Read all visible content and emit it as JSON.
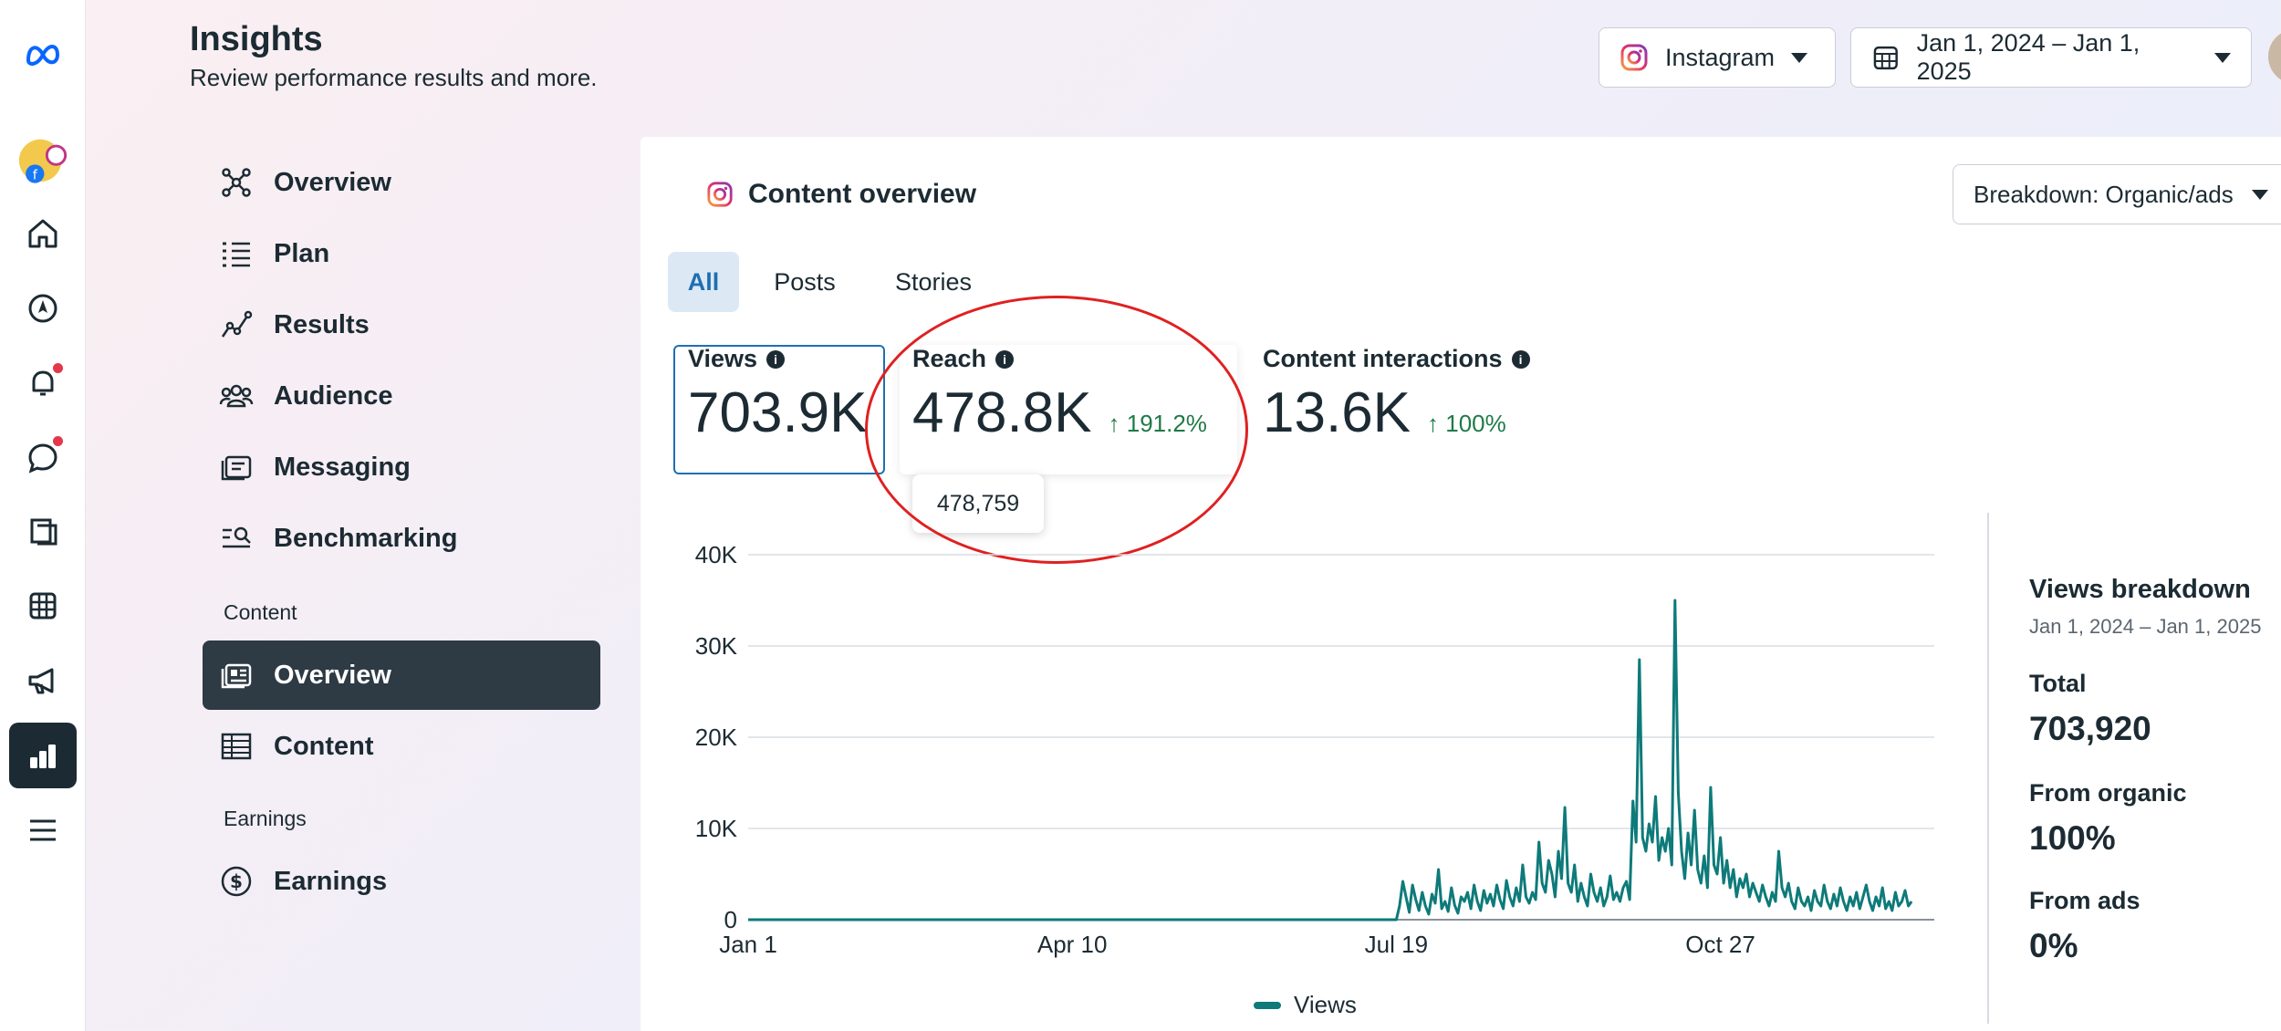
{
  "header": {
    "title": "Insights",
    "subtitle": "Review performance results and more.",
    "platform": "Instagram",
    "date_range": "Jan 1, 2024 – Jan 1, 2025"
  },
  "rail": {
    "icons": [
      "meta-logo-icon",
      "account-avatar-icon",
      "home-icon",
      "compass-icon",
      "bell-icon",
      "chat-icon",
      "posts-icon",
      "table-icon",
      "megaphone-icon",
      "insights-icon",
      "menu-icon"
    ],
    "accent": "#1c2b33",
    "notification_color": "#e4384a"
  },
  "nav": {
    "items": [
      {
        "label": "Overview"
      },
      {
        "label": "Plan"
      },
      {
        "label": "Results"
      },
      {
        "label": "Audience"
      },
      {
        "label": "Messaging"
      },
      {
        "label": "Benchmarking"
      }
    ],
    "content_section": "Content",
    "content_items": [
      {
        "label": "Overview"
      },
      {
        "label": "Content"
      }
    ],
    "earnings_section": "Earnings",
    "earnings_items": [
      {
        "label": "Earnings"
      }
    ]
  },
  "card": {
    "title": "Content overview",
    "breakdown_label": "Breakdown: Organic/ads",
    "tabs": [
      {
        "label": "All"
      },
      {
        "label": "Posts"
      },
      {
        "label": "Stories"
      }
    ],
    "metrics": {
      "views": {
        "label": "Views",
        "value": "703.9K"
      },
      "reach": {
        "label": "Reach",
        "value": "478.8K",
        "delta": "↑ 191.2%",
        "tooltip": "478,759"
      },
      "interactions": {
        "label": "Content interactions",
        "value": "13.6K",
        "delta": "↑ 100%"
      }
    }
  },
  "breakdown": {
    "title": "Views breakdown",
    "range": "Jan 1, 2024 – Jan 1, 2025",
    "total_label": "Total",
    "total_value": "703,920",
    "organic_label": "From organic",
    "organic_value": "100%",
    "ads_label": "From ads",
    "ads_value": "0%"
  },
  "chart_data": {
    "type": "line",
    "title": "",
    "xlabel": "",
    "ylabel": "",
    "ylim": [
      0,
      40000
    ],
    "yticks": [
      "0",
      "10K",
      "20K",
      "30K",
      "40K"
    ],
    "xtick_labels": [
      "Jan 1",
      "Apr 10",
      "Jul 19",
      "Oct 27"
    ],
    "xtick_day_index": [
      0,
      100,
      200,
      300
    ],
    "days": 367,
    "grid": true,
    "legend": "bottom",
    "series": [
      {
        "name": "Views",
        "color": "#0e7a7a",
        "zero_until_day": 200,
        "values_from_day_200": [
          0,
          1500,
          4200,
          2500,
          800,
          3800,
          2200,
          1000,
          3000,
          1500,
          600,
          2800,
          1800,
          5500,
          1200,
          2000,
          900,
          3500,
          1600,
          700,
          2500,
          2000,
          3000,
          1200,
          3800,
          2000,
          1000,
          3200,
          1800,
          2800,
          1500,
          3800,
          2200,
          1200,
          4300,
          2500,
          1500,
          3500,
          2000,
          6000,
          2500,
          1800,
          3000,
          2200,
          8500,
          4000,
          3000,
          6500,
          5000,
          2500,
          7500,
          4500,
          12300,
          4000,
          3000,
          6000,
          2000,
          4000,
          2500,
          1500,
          5000,
          3000,
          2000,
          3500,
          1500,
          2500,
          4800,
          2200,
          3000,
          2000,
          3500,
          4200,
          2200,
          13000,
          8500,
          28500,
          9000,
          7500,
          10500,
          8500,
          13500,
          6500,
          9000,
          7500,
          10000,
          6000,
          35000,
          14000,
          7500,
          4500,
          9500,
          6000,
          12000,
          5500,
          4000,
          7000,
          3500,
          14500,
          6000,
          5000,
          9000,
          4000,
          6500,
          3500,
          5500,
          2500,
          4500,
          3500,
          5000,
          2500,
          4000,
          3000,
          2000,
          3800,
          2500,
          1500,
          3000,
          2000,
          7500,
          3500,
          2500,
          4000,
          2000,
          1200,
          3500,
          2000,
          1500,
          2500,
          1000,
          3200,
          2000,
          1500,
          3800,
          2000,
          1200,
          2800,
          1500,
          3500,
          2000,
          1000,
          2500,
          1500,
          3000,
          1200,
          2500,
          3800,
          2000,
          1000,
          2500,
          1500,
          3500,
          1200,
          2000,
          1000,
          3000,
          1500,
          2000,
          3200,
          1500,
          2000
        ]
      }
    ]
  }
}
